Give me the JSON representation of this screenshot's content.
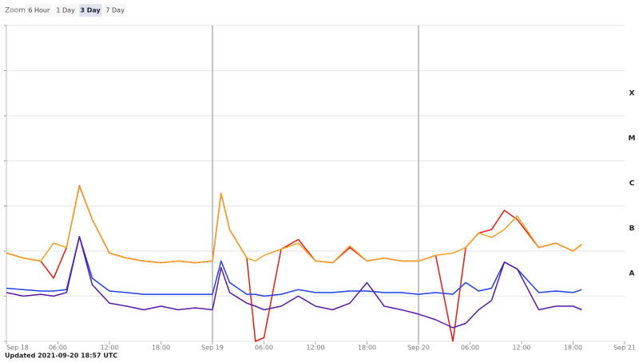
{
  "toolbar": {
    "label": "Zoom",
    "options": [
      "6 Hour",
      "1 Day",
      "3 Day",
      "7 Day"
    ],
    "selected": "3 Day"
  },
  "footer": "Updated 2021-09-20 18:57 UTC",
  "chart_data": {
    "type": "line",
    "log_scale": true,
    "grid": true,
    "x": [
      "Sep 18 00:00",
      "Sep 18 02:00",
      "Sep 18 04:00",
      "Sep 18 05:30",
      "Sep 18 07:00",
      "Sep 18 08:30",
      "Sep 18 10:00",
      "Sep 18 12:00",
      "Sep 18 14:00",
      "Sep 18 16:00",
      "Sep 18 18:00",
      "Sep 18 20:00",
      "Sep 18 22:00",
      "Sep 19 00:00",
      "Sep 19 01:00",
      "Sep 19 02:00",
      "Sep 19 04:00",
      "Sep 19 05:00",
      "Sep 19 06:00",
      "Sep 19 08:00",
      "Sep 19 10:00",
      "Sep 19 12:00",
      "Sep 19 14:00",
      "Sep 19 16:00",
      "Sep 19 18:00",
      "Sep 19 20:00",
      "Sep 19 22:00",
      "Sep 20 00:00",
      "Sep 20 02:00",
      "Sep 20 04:00",
      "Sep 20 05:30",
      "Sep 20 07:00",
      "Sep 20 08:30",
      "Sep 20 10:00",
      "Sep 20 11:30",
      "Sep 20 14:00",
      "Sep 20 16:00",
      "Sep 20 18:00",
      "Sep 20 19:00"
    ],
    "xlim": [
      "Sep 18 00:00",
      "Sep 21 00:00"
    ],
    "xticks": [
      {
        "value": "Sep 18 00:00",
        "label": "Sep 18"
      },
      {
        "value": "Sep 18 06:00",
        "label": "06:00"
      },
      {
        "value": "Sep 18 12:00",
        "label": "12:00"
      },
      {
        "value": "Sep 18 18:00",
        "label": "18:00"
      },
      {
        "value": "Sep 19 00:00",
        "label": "Sep 19"
      },
      {
        "value": "Sep 19 06:00",
        "label": "06:00"
      },
      {
        "value": "Sep 19 12:00",
        "label": "12:00"
      },
      {
        "value": "Sep 19 18:00",
        "label": "18:00"
      },
      {
        "value": "Sep 20 00:00",
        "label": "Sep 20"
      },
      {
        "value": "Sep 20 06:00",
        "label": "06:00"
      },
      {
        "value": "Sep 20 12:00",
        "label": "12:00"
      },
      {
        "value": "Sep 20 18:00",
        "label": "18:00"
      },
      {
        "value": "Sep 21 00:00",
        "label": "Sep 21"
      }
    ],
    "ylim": [
      1e-09,
      0.01
    ],
    "ygrid": [
      1e-09,
      1e-08,
      1e-07,
      1e-06,
      1e-05,
      0.0001,
      0.001,
      0.01
    ],
    "yticks": [
      {
        "value": 1e-08,
        "label": "A"
      },
      {
        "value": 1e-07,
        "label": "B"
      },
      {
        "value": 1e-06,
        "label": "C"
      },
      {
        "value": 1e-05,
        "label": "M"
      },
      {
        "value": 0.0001,
        "label": "X"
      }
    ],
    "series": [
      {
        "color": "#e8190f",
        "values": [
          9e-08,
          7e-08,
          6e-08,
          2.5e-08,
          1.2e-07,
          2.8e-06,
          5e-07,
          9e-08,
          7e-08,
          6e-08,
          5.5e-08,
          6e-08,
          5.5e-08,
          6e-08,
          1.9e-06,
          3e-07,
          7e-08,
          1e-09,
          1.2e-09,
          1.1e-07,
          1.8e-07,
          6e-08,
          5.5e-08,
          1.2e-07,
          6e-08,
          7e-08,
          6e-08,
          6e-08,
          8e-08,
          1e-09,
          1.2e-07,
          2.5e-07,
          3e-07,
          8e-07,
          5e-07,
          1.2e-07,
          1.5e-07,
          1e-07,
          1.4e-07
        ]
      },
      {
        "color": "#f5a021",
        "values": [
          9e-08,
          7e-08,
          6e-08,
          1.5e-07,
          1.2e-07,
          2.7e-06,
          5e-07,
          9e-08,
          7e-08,
          6e-08,
          5.5e-08,
          6e-08,
          5.5e-08,
          6e-08,
          1.9e-06,
          3e-07,
          7e-08,
          6e-08,
          8e-08,
          1.1e-07,
          1.5e-07,
          6e-08,
          5.5e-08,
          1.3e-07,
          6e-08,
          7e-08,
          6e-08,
          6e-08,
          8e-08,
          9e-08,
          1.2e-07,
          2.5e-07,
          2e-07,
          3e-07,
          6e-07,
          1.2e-07,
          1.5e-07,
          1e-07,
          1.4e-07
        ]
      },
      {
        "color": "#1f3ff0",
        "values": [
          1.5e-08,
          1.4e-08,
          1.3e-08,
          1.3e-08,
          1.4e-08,
          2.1e-07,
          2.5e-08,
          1.3e-08,
          1.2e-08,
          1.1e-08,
          1.1e-08,
          1.1e-08,
          1.1e-08,
          1.1e-08,
          6e-08,
          2e-08,
          1.1e-08,
          1.1e-08,
          1e-08,
          1.1e-08,
          1.4e-08,
          1.2e-08,
          1.2e-08,
          1.3e-08,
          1.3e-08,
          1.2e-08,
          1.2e-08,
          1.1e-08,
          1.2e-08,
          1.1e-08,
          2e-08,
          1.3e-08,
          1.5e-08,
          5.7e-08,
          4e-08,
          1.2e-08,
          1.3e-08,
          1.2e-08,
          1.4e-08
        ]
      },
      {
        "color": "#5a17a8",
        "values": [
          1.2e-08,
          1e-08,
          1.1e-08,
          1e-08,
          1.2e-08,
          2.1e-07,
          1.8e-08,
          7e-09,
          6e-09,
          5e-09,
          6e-09,
          5e-09,
          5.5e-09,
          5e-09,
          4.3e-08,
          1.2e-08,
          7e-09,
          6e-09,
          5e-09,
          6e-09,
          1e-08,
          6e-09,
          5e-09,
          7e-09,
          2e-08,
          6e-09,
          5e-09,
          4e-09,
          3e-09,
          2e-09,
          2.5e-09,
          5e-09,
          8e-09,
          5.7e-08,
          4e-08,
          5e-09,
          6e-09,
          6e-09,
          5e-09
        ]
      }
    ]
  }
}
